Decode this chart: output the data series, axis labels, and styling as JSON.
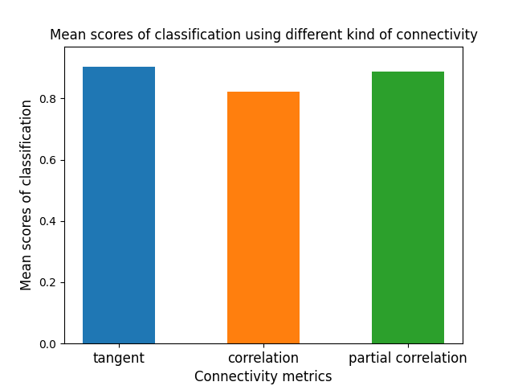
{
  "categories": [
    "tangent",
    "correlation",
    "partial correlation"
  ],
  "values": [
    0.903,
    0.823,
    0.887
  ],
  "bar_colors": [
    "#1f77b4",
    "#ff7f0e",
    "#2ca02c"
  ],
  "title": "Mean scores of classification using different kind of connectivity",
  "xlabel": "Connectivity metrics",
  "ylabel": "Mean scores of classification",
  "ylim": [
    0.0,
    0.97
  ],
  "title_fontsize": 12,
  "label_fontsize": 12,
  "tick_fontsize": 12,
  "bar_width": 0.5,
  "figsize": [
    6.4,
    4.8
  ],
  "dpi": 100
}
